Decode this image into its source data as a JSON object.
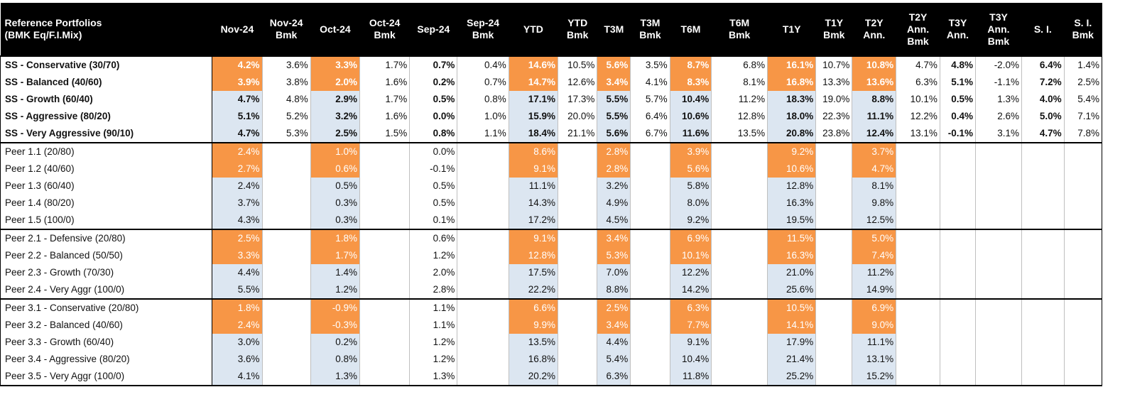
{
  "colors": {
    "header_bg": "#000000",
    "header_text": "#ffffff",
    "highlight_orange": "#f79646",
    "highlight_blue": "#dce6f1"
  },
  "header": {
    "name": "Reference Portfolios\n(BMK Eq/F.I.Mix)",
    "columns": [
      "Nov-24",
      "Nov-24\nBmk",
      "Oct-24",
      "Oct-24\nBmk",
      "Sep-24",
      "Sep-24\nBmk",
      "YTD",
      "YTD\nBmk",
      "T3M",
      "T3M\nBmk",
      "T6M",
      "T6M\nBmk",
      "T1Y",
      "T1Y\nBmk",
      "T2Y\nAnn.",
      "T2Y\nAnn.\nBmk",
      "T3Y\nAnn.",
      "T3Y\nAnn.\nBmk",
      "S. I.",
      "S. I.\nBmk"
    ]
  },
  "groups": [
    {
      "rows": [
        {
          "name": "SS - Conservative (30/70)",
          "values": [
            "4.2%",
            "3.6%",
            "3.3%",
            "1.7%",
            "0.7%",
            "0.4%",
            "14.6%",
            "10.5%",
            "5.6%",
            "3.5%",
            "8.7%",
            "6.8%",
            "16.1%",
            "10.7%",
            "10.8%",
            "4.7%",
            "4.8%",
            "-2.0%",
            "6.4%",
            "1.4%"
          ],
          "fill": [
            "o",
            "",
            "o",
            "",
            "",
            "",
            "o",
            "",
            "o",
            "",
            "o",
            "",
            "o",
            "",
            "o",
            "",
            "",
            "",
            "",
            ""
          ]
        },
        {
          "name": "SS - Balanced (40/60)",
          "values": [
            "3.9%",
            "3.8%",
            "2.0%",
            "1.6%",
            "0.2%",
            "0.7%",
            "14.7%",
            "12.6%",
            "3.4%",
            "4.1%",
            "8.3%",
            "8.1%",
            "16.8%",
            "13.3%",
            "13.6%",
            "6.3%",
            "5.1%",
            "-1.1%",
            "7.2%",
            "2.5%"
          ],
          "fill": [
            "o",
            "",
            "o",
            "",
            "",
            "",
            "o",
            "",
            "o",
            "",
            "o",
            "",
            "o",
            "",
            "o",
            "",
            "",
            "",
            "",
            ""
          ]
        },
        {
          "name": "SS - Growth (60/40)",
          "values": [
            "4.7%",
            "4.8%",
            "2.9%",
            "1.7%",
            "0.5%",
            "0.8%",
            "17.1%",
            "17.3%",
            "5.5%",
            "5.7%",
            "10.4%",
            "11.2%",
            "18.3%",
            "19.0%",
            "8.8%",
            "10.1%",
            "0.5%",
            "1.3%",
            "4.0%",
            "5.4%"
          ],
          "fill": [
            "b",
            "",
            "b",
            "",
            "",
            "",
            "b",
            "",
            "b",
            "",
            "b",
            "",
            "b",
            "",
            "b",
            "",
            "",
            "",
            "",
            ""
          ]
        },
        {
          "name": "SS - Aggressive (80/20)",
          "values": [
            "5.1%",
            "5.2%",
            "3.2%",
            "1.6%",
            "0.0%",
            "1.0%",
            "15.9%",
            "20.0%",
            "5.5%",
            "6.4%",
            "10.6%",
            "12.8%",
            "18.0%",
            "22.3%",
            "11.1%",
            "12.2%",
            "0.4%",
            "2.6%",
            "5.0%",
            "7.1%"
          ],
          "fill": [
            "b",
            "",
            "b",
            "",
            "",
            "",
            "b",
            "",
            "b",
            "",
            "b",
            "",
            "b",
            "",
            "b",
            "",
            "",
            "",
            "",
            ""
          ]
        },
        {
          "name": "SS - Very Aggressive (90/10)",
          "values": [
            "4.7%",
            "5.3%",
            "2.5%",
            "1.5%",
            "0.8%",
            "1.1%",
            "18.4%",
            "21.1%",
            "5.6%",
            "6.7%",
            "11.6%",
            "13.5%",
            "20.8%",
            "23.8%",
            "12.4%",
            "13.1%",
            "-0.1%",
            "3.1%",
            "4.7%",
            "7.8%"
          ],
          "fill": [
            "b",
            "",
            "b",
            "",
            "",
            "",
            "b",
            "",
            "b",
            "",
            "b",
            "",
            "b",
            "",
            "b",
            "",
            "",
            "",
            "",
            ""
          ]
        }
      ]
    },
    {
      "rows": [
        {
          "name": "Peer 1.1 (20/80)",
          "values": [
            "2.4%",
            "",
            "1.0%",
            "",
            "0.0%",
            "",
            "8.6%",
            "",
            "2.8%",
            "",
            "3.9%",
            "",
            "9.2%",
            "",
            "3.7%",
            "",
            "",
            "",
            "",
            ""
          ],
          "fill": [
            "o",
            "",
            "o",
            "",
            "",
            "",
            "o",
            "",
            "o",
            "",
            "o",
            "",
            "o",
            "",
            "o",
            "",
            "",
            "",
            "",
            ""
          ]
        },
        {
          "name": "Peer 1.2 (40/60)",
          "values": [
            "2.7%",
            "",
            "0.6%",
            "",
            "-0.1%",
            "",
            "9.1%",
            "",
            "2.8%",
            "",
            "5.6%",
            "",
            "10.6%",
            "",
            "4.7%",
            "",
            "",
            "",
            "",
            ""
          ],
          "fill": [
            "o",
            "",
            "o",
            "",
            "",
            "",
            "o",
            "",
            "o",
            "",
            "o",
            "",
            "o",
            "",
            "o",
            "",
            "",
            "",
            "",
            ""
          ]
        },
        {
          "name": "Peer 1.3 (60/40)",
          "values": [
            "2.4%",
            "",
            "0.5%",
            "",
            "0.5%",
            "",
            "11.1%",
            "",
            "3.2%",
            "",
            "5.8%",
            "",
            "12.8%",
            "",
            "8.1%",
            "",
            "",
            "",
            "",
            ""
          ],
          "fill": [
            "b",
            "",
            "b",
            "",
            "",
            "",
            "b",
            "",
            "b",
            "",
            "b",
            "",
            "b",
            "",
            "b",
            "",
            "",
            "",
            "",
            ""
          ]
        },
        {
          "name": "Peer 1.4 (80/20)",
          "values": [
            "3.7%",
            "",
            "0.3%",
            "",
            "0.5%",
            "",
            "14.3%",
            "",
            "4.9%",
            "",
            "8.0%",
            "",
            "16.3%",
            "",
            "9.8%",
            "",
            "",
            "",
            "",
            ""
          ],
          "fill": [
            "b",
            "",
            "b",
            "",
            "",
            "",
            "b",
            "",
            "b",
            "",
            "b",
            "",
            "b",
            "",
            "b",
            "",
            "",
            "",
            "",
            ""
          ]
        },
        {
          "name": "Peer 1.5 (100/0)",
          "values": [
            "4.3%",
            "",
            "0.3%",
            "",
            "0.1%",
            "",
            "17.2%",
            "",
            "4.5%",
            "",
            "9.2%",
            "",
            "19.5%",
            "",
            "12.5%",
            "",
            "",
            "",
            "",
            ""
          ],
          "fill": [
            "b",
            "",
            "b",
            "",
            "",
            "",
            "b",
            "",
            "b",
            "",
            "b",
            "",
            "b",
            "",
            "b",
            "",
            "",
            "",
            "",
            ""
          ]
        }
      ]
    },
    {
      "rows": [
        {
          "name": "Peer 2.1 - Defensive (20/80)",
          "values": [
            "2.5%",
            "",
            "1.8%",
            "",
            "0.6%",
            "",
            "9.1%",
            "",
            "3.4%",
            "",
            "6.9%",
            "",
            "11.5%",
            "",
            "5.0%",
            "",
            "",
            "",
            "",
            ""
          ],
          "fill": [
            "o",
            "",
            "o",
            "",
            "",
            "",
            "o",
            "",
            "o",
            "",
            "o",
            "",
            "o",
            "",
            "o",
            "",
            "",
            "",
            "",
            ""
          ]
        },
        {
          "name": "Peer 2.2 - Balanced (50/50)",
          "values": [
            "3.3%",
            "",
            "1.7%",
            "",
            "1.2%",
            "",
            "12.8%",
            "",
            "5.3%",
            "",
            "10.1%",
            "",
            "16.3%",
            "",
            "7.4%",
            "",
            "",
            "",
            "",
            ""
          ],
          "fill": [
            "o",
            "",
            "o",
            "",
            "",
            "",
            "o",
            "",
            "o",
            "",
            "o",
            "",
            "o",
            "",
            "o",
            "",
            "",
            "",
            "",
            ""
          ]
        },
        {
          "name": "Peer 2.3 - Growth (70/30)",
          "values": [
            "4.4%",
            "",
            "1.4%",
            "",
            "2.0%",
            "",
            "17.5%",
            "",
            "7.0%",
            "",
            "12.2%",
            "",
            "21.0%",
            "",
            "11.2%",
            "",
            "",
            "",
            "",
            ""
          ],
          "fill": [
            "b",
            "",
            "b",
            "",
            "",
            "",
            "b",
            "",
            "b",
            "",
            "b",
            "",
            "b",
            "",
            "b",
            "",
            "",
            "",
            "",
            ""
          ]
        },
        {
          "name": "Peer 2.4 - Very Aggr (100/0)",
          "values": [
            "5.5%",
            "",
            "1.2%",
            "",
            "2.8%",
            "",
            "22.2%",
            "",
            "8.8%",
            "",
            "14.2%",
            "",
            "25.6%",
            "",
            "14.9%",
            "",
            "",
            "",
            "",
            ""
          ],
          "fill": [
            "b",
            "",
            "b",
            "",
            "",
            "",
            "b",
            "",
            "b",
            "",
            "b",
            "",
            "b",
            "",
            "b",
            "",
            "",
            "",
            "",
            ""
          ]
        }
      ]
    },
    {
      "rows": [
        {
          "name": "Peer 3.1 - Conservative (20/80)",
          "values": [
            "1.8%",
            "",
            "-0.9%",
            "",
            "1.1%",
            "",
            "6.6%",
            "",
            "2.5%",
            "",
            "6.3%",
            "",
            "10.5%",
            "",
            "6.9%",
            "",
            "",
            "",
            "",
            ""
          ],
          "fill": [
            "o",
            "",
            "o",
            "",
            "",
            "",
            "o",
            "",
            "o",
            "",
            "o",
            "",
            "o",
            "",
            "o",
            "",
            "",
            "",
            "",
            ""
          ]
        },
        {
          "name": "Peer 3.2 - Balanced (40/60)",
          "values": [
            "2.4%",
            "",
            "-0.3%",
            "",
            "1.1%",
            "",
            "9.9%",
            "",
            "3.4%",
            "",
            "7.7%",
            "",
            "14.1%",
            "",
            "9.0%",
            "",
            "",
            "",
            "",
            ""
          ],
          "fill": [
            "o",
            "",
            "o",
            "",
            "",
            "",
            "o",
            "",
            "o",
            "",
            "o",
            "",
            "o",
            "",
            "o",
            "",
            "",
            "",
            "",
            ""
          ]
        },
        {
          "name": "Peer 3.3 - Growth (60/40)",
          "values": [
            "3.0%",
            "",
            "0.2%",
            "",
            "1.2%",
            "",
            "13.5%",
            "",
            "4.4%",
            "",
            "9.1%",
            "",
            "17.9%",
            "",
            "11.1%",
            "",
            "",
            "",
            "",
            ""
          ],
          "fill": [
            "b",
            "",
            "b",
            "",
            "",
            "",
            "b",
            "",
            "b",
            "",
            "b",
            "",
            "b",
            "",
            "b",
            "",
            "",
            "",
            "",
            ""
          ]
        },
        {
          "name": "Peer 3.4 - Aggressive (80/20)",
          "values": [
            "3.6%",
            "",
            "0.8%",
            "",
            "1.2%",
            "",
            "16.8%",
            "",
            "5.4%",
            "",
            "10.4%",
            "",
            "21.4%",
            "",
            "13.1%",
            "",
            "",
            "",
            "",
            ""
          ],
          "fill": [
            "b",
            "",
            "b",
            "",
            "",
            "",
            "b",
            "",
            "b",
            "",
            "b",
            "",
            "b",
            "",
            "b",
            "",
            "",
            "",
            "",
            ""
          ]
        },
        {
          "name": "Peer 3.5 - Very Aggr (100/0)",
          "values": [
            "4.1%",
            "",
            "1.3%",
            "",
            "1.3%",
            "",
            "20.2%",
            "",
            "6.3%",
            "",
            "11.8%",
            "",
            "25.2%",
            "",
            "15.2%",
            "",
            "",
            "",
            "",
            ""
          ],
          "fill": [
            "b",
            "",
            "b",
            "",
            "",
            "",
            "b",
            "",
            "b",
            "",
            "b",
            "",
            "b",
            "",
            "b",
            "",
            "",
            "",
            "",
            ""
          ]
        }
      ]
    }
  ]
}
